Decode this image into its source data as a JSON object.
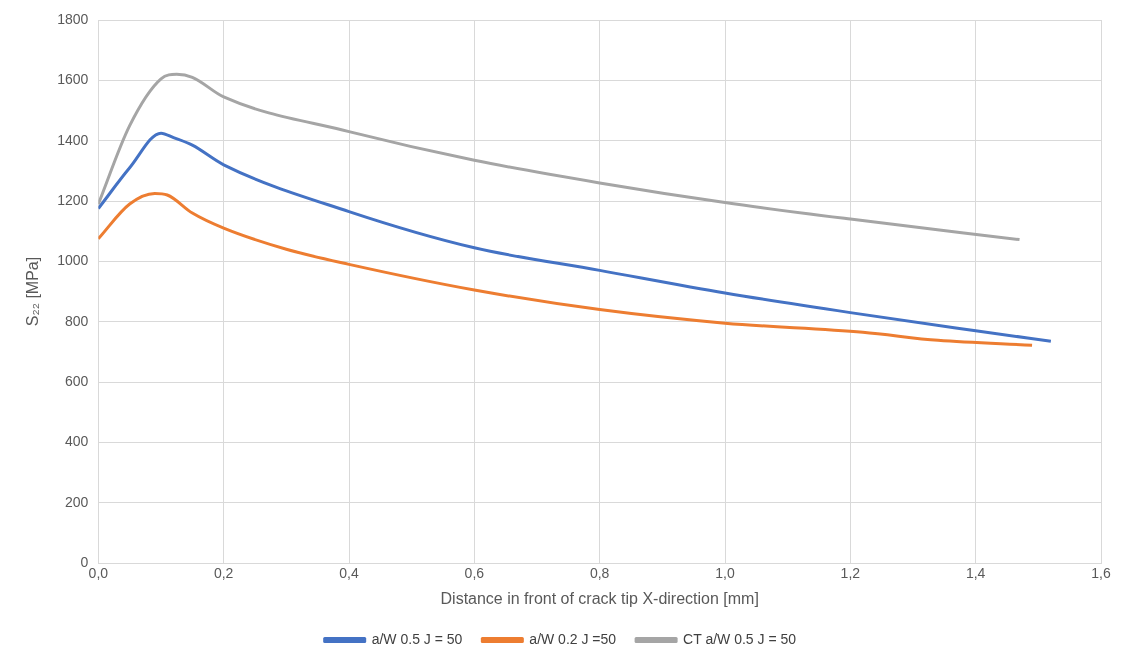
{
  "chart_data": {
    "type": "line",
    "xlabel": "Distance in front of crack tip X-direction [mm]",
    "ylabel": "S₂₂ [MPa]",
    "xlim": [
      0,
      1.6
    ],
    "xticks": [
      {
        "value": 0,
        "label": "0,0"
      },
      {
        "value": 0.2,
        "label": "0,2"
      },
      {
        "value": 0.4,
        "label": "0,4"
      },
      {
        "value": 0.6,
        "label": "0,6"
      },
      {
        "value": 0.8,
        "label": "0,8"
      },
      {
        "value": 1,
        "label": "1,0"
      },
      {
        "value": 1.2,
        "label": "1,2"
      },
      {
        "value": 1.4,
        "label": "1,4"
      },
      {
        "value": 1.6,
        "label": "1,6"
      }
    ],
    "ylim": [
      0,
      1800
    ],
    "yticks": [
      0,
      200,
      400,
      600,
      800,
      1000,
      1200,
      1400,
      1600,
      1800
    ],
    "grid": true,
    "legend": "bottom",
    "marker": "none",
    "line_style": "solid",
    "series": [
      {
        "name": "a/W 0.5 J = 50",
        "color": "#4472c4",
        "x": [
          0,
          0.05,
          0.1,
          0.12,
          0.15,
          0.2,
          0.4,
          0.6,
          0.8,
          1.0,
          1.2,
          1.4,
          1.52
        ],
        "values": [
          1175,
          1310,
          1425,
          1410,
          1385,
          1320,
          1165,
          1045,
          970,
          895,
          830,
          770,
          735
        ]
      },
      {
        "name": "a/W 0.2 J =50",
        "color": "#ed7d31",
        "x": [
          0,
          0.05,
          0.09,
          0.11,
          0.15,
          0.2,
          0.3,
          0.4,
          0.6,
          0.8,
          1.0,
          1.22,
          1.34,
          1.49
        ],
        "values": [
          1075,
          1190,
          1225,
          1220,
          1160,
          1110,
          1040,
          990,
          905,
          840,
          795,
          765,
          738,
          722
        ]
      },
      {
        "name": "CT a/W 0.5 J = 50",
        "color": "#a5a5a5",
        "x": [
          0,
          0.05,
          0.1,
          0.125,
          0.15,
          0.2,
          0.4,
          0.6,
          0.8,
          1.0,
          1.2,
          1.47
        ],
        "values": [
          1190,
          1450,
          1605,
          1620,
          1610,
          1545,
          1430,
          1335,
          1260,
          1195,
          1140,
          1072
        ]
      }
    ]
  }
}
